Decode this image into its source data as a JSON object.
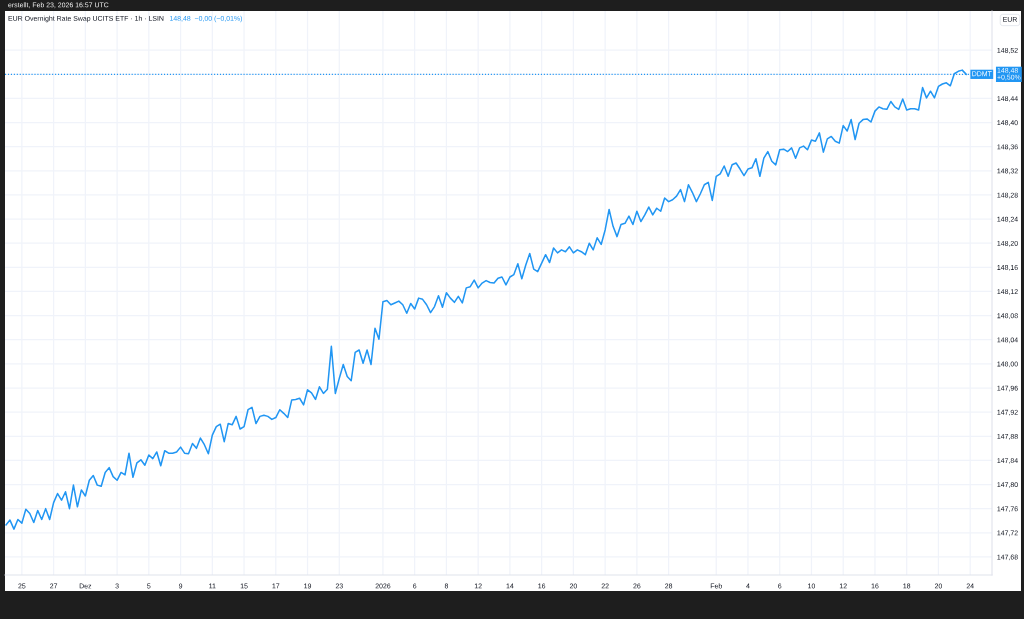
{
  "chart_data": {
    "type": "line",
    "title": "EUR Overnight Rate Swap UCITS ETF · 1h · LSIN",
    "subtitle": "148,48  −0,00 (−0,01%)",
    "ylabel": "EUR",
    "annotations": [
      "erstellt, Feb 23, 2026 16:57 UTC",
      {
        "text": "DDMT",
        "y": 148.48
      }
    ],
    "color": "#2196f3",
    "line_style": "solid",
    "grid": true,
    "categories": [
      null,
      null,
      null,
      null,
      "25",
      null,
      null,
      null,
      null,
      null,
      null,
      null,
      "27",
      null,
      null,
      null,
      null,
      null,
      null,
      null,
      "Dez",
      null,
      null,
      null,
      null,
      null,
      null,
      null,
      "3",
      null,
      null,
      null,
      null,
      null,
      null,
      null,
      "5",
      null,
      null,
      null,
      null,
      null,
      null,
      null,
      "9",
      null,
      null,
      null,
      null,
      null,
      null,
      null,
      "11",
      null,
      null,
      null,
      null,
      null,
      null,
      null,
      "15",
      null,
      null,
      null,
      null,
      null,
      null,
      null,
      "17",
      null,
      null,
      null,
      null,
      null,
      null,
      null,
      "19",
      null,
      null,
      null,
      null,
      null,
      null,
      null,
      "23",
      null,
      null,
      null,
      null,
      null,
      null,
      null,
      null,
      null,
      null,
      "2026",
      null,
      null,
      null,
      null,
      null,
      null,
      null,
      "6",
      null,
      null,
      null,
      null,
      null,
      null,
      null,
      "8",
      null,
      null,
      null,
      null,
      null,
      null,
      null,
      "12",
      null,
      null,
      null,
      null,
      null,
      null,
      null,
      "14",
      null,
      null,
      null,
      null,
      null,
      null,
      null,
      "16",
      null,
      null,
      null,
      null,
      null,
      null,
      null,
      "20",
      null,
      null,
      null,
      null,
      null,
      null,
      null,
      "22",
      null,
      null,
      null,
      null,
      null,
      null,
      null,
      "26",
      null,
      null,
      null,
      null,
      null,
      null,
      null,
      "28",
      null,
      null,
      null,
      null,
      null,
      null,
      null,
      null,
      null,
      null,
      null,
      "Feb",
      null,
      null,
      null,
      null,
      null,
      null,
      null,
      "4",
      null,
      null,
      null,
      null,
      null,
      null,
      null,
      "6",
      null,
      null,
      null,
      null,
      null,
      null,
      null,
      "10",
      null,
      null,
      null,
      null,
      null,
      null,
      null,
      "12",
      null,
      null,
      null,
      null,
      null,
      null,
      null,
      "16",
      null,
      null,
      null,
      null,
      null,
      null,
      null,
      "18",
      null,
      null,
      null,
      null,
      null,
      null,
      null,
      "20",
      null,
      null,
      null,
      null,
      null,
      null,
      null,
      "24"
    ],
    "values": [
      147.733,
      147.741,
      147.726,
      147.742,
      147.736,
      147.759,
      147.752,
      147.737,
      147.757,
      147.742,
      147.76,
      147.742,
      147.77,
      147.785,
      147.774,
      147.788,
      147.76,
      147.799,
      147.763,
      147.791,
      147.781,
      147.807,
      147.815,
      147.799,
      147.797,
      147.82,
      147.828,
      147.813,
      147.807,
      147.82,
      147.816,
      147.852,
      147.812,
      147.836,
      147.841,
      147.832,
      147.849,
      147.843,
      147.854,
      147.831,
      147.856,
      147.852,
      147.852,
      147.854,
      147.862,
      147.852,
      147.851,
      147.868,
      147.86,
      147.877,
      147.866,
      147.851,
      147.882,
      147.896,
      147.9,
      147.871,
      147.901,
      147.899,
      147.913,
      147.892,
      147.896,
      147.924,
      147.928,
      147.901,
      147.913,
      147.915,
      147.913,
      147.908,
      147.911,
      147.924,
      147.918,
      147.911,
      147.94,
      147.941,
      147.943,
      147.932,
      147.957,
      147.952,
      147.941,
      147.962,
      147.951,
      147.958,
      148.029,
      147.951,
      147.976,
      147.999,
      147.979,
      147.972,
      148.019,
      148.023,
      148.001,
      148.023,
      147.999,
      148.059,
      148.041,
      148.103,
      148.105,
      148.098,
      148.101,
      148.104,
      148.098,
      148.084,
      148.1,
      148.091,
      148.109,
      148.107,
      148.098,
      148.085,
      148.095,
      148.113,
      148.094,
      148.118,
      148.109,
      148.102,
      148.112,
      148.101,
      148.126,
      148.128,
      148.139,
      148.126,
      148.134,
      148.138,
      148.135,
      148.134,
      148.142,
      148.144,
      148.131,
      148.144,
      148.148,
      148.166,
      148.141,
      148.164,
      148.183,
      148.157,
      148.153,
      148.167,
      148.181,
      148.168,
      148.192,
      148.184,
      148.189,
      148.186,
      148.194,
      148.184,
      148.189,
      148.186,
      148.181,
      148.2,
      148.189,
      148.209,
      148.198,
      148.222,
      148.256,
      148.228,
      148.211,
      148.231,
      148.233,
      148.245,
      148.231,
      148.253,
      148.236,
      148.247,
      148.26,
      148.247,
      148.258,
      148.253,
      148.275,
      148.269,
      148.272,
      148.278,
      148.289,
      148.269,
      148.297,
      148.284,
      148.269,
      148.282,
      148.297,
      148.301,
      148.271,
      148.311,
      148.315,
      148.328,
      148.311,
      148.33,
      148.333,
      148.323,
      148.312,
      148.323,
      148.325,
      148.34,
      148.311,
      148.341,
      148.352,
      148.336,
      148.33,
      148.355,
      148.356,
      148.352,
      148.358,
      148.341,
      148.358,
      148.361,
      148.355,
      148.371,
      148.369,
      148.383,
      148.351,
      148.373,
      148.377,
      148.369,
      148.366,
      148.395,
      148.386,
      148.405,
      148.372,
      148.399,
      148.405,
      148.406,
      148.401,
      148.419,
      148.426,
      148.423,
      148.422,
      148.435,
      148.426,
      148.422,
      148.439,
      148.421,
      148.423,
      148.423,
      148.421,
      148.458,
      148.441,
      148.452,
      148.441,
      148.46,
      148.464,
      148.466,
      148.461,
      148.481,
      148.485,
      148.487,
      148.48,
      null
    ],
    "ylim": [
      147.65,
      148.585
    ],
    "yticks": [
      {
        "value": 147.68,
        "label": "147,68"
      },
      {
        "value": 147.72,
        "label": "147,72"
      },
      {
        "value": 147.76,
        "label": "147,76"
      },
      {
        "value": 147.8,
        "label": "147,80"
      },
      {
        "value": 147.84,
        "label": "147,84"
      },
      {
        "value": 147.88,
        "label": "147,88"
      },
      {
        "value": 147.92,
        "label": "147,92"
      },
      {
        "value": 147.96,
        "label": "147,96"
      },
      {
        "value": 148.0,
        "label": "148,00"
      },
      {
        "value": 148.04,
        "label": "148,04"
      },
      {
        "value": 148.08,
        "label": "148,08"
      },
      {
        "value": 148.12,
        "label": "148,12"
      },
      {
        "value": 148.16,
        "label": "148,16"
      },
      {
        "value": 148.2,
        "label": "148,20"
      },
      {
        "value": 148.24,
        "label": "148,24"
      },
      {
        "value": 148.28,
        "label": "148,28"
      },
      {
        "value": 148.32,
        "label": "148,32"
      },
      {
        "value": 148.36,
        "label": "148,36"
      },
      {
        "value": 148.4,
        "label": "148,40"
      },
      {
        "value": 148.44,
        "label": "148,44"
      },
      {
        "value": 148.48,
        "label": null
      },
      {
        "value": 148.52,
        "label": "148,52"
      }
    ],
    "ref_lines": [
      {
        "axis": "y",
        "value": 148.48,
        "label": "148,48\n+0,50%",
        "color": "#2196f3",
        "line_style": "dotted"
      }
    ]
  }
}
